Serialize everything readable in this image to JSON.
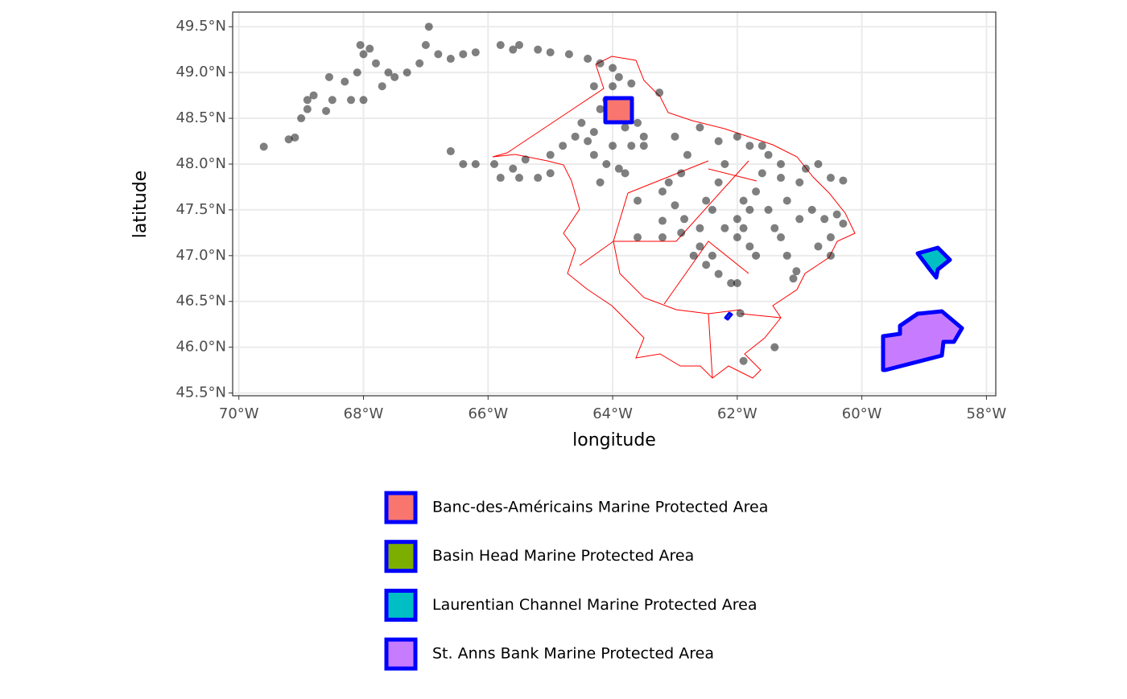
{
  "chart_data": {
    "type": "scatter",
    "xlabel": "longitude",
    "ylabel": "latitude",
    "xlim": [
      -70.1,
      -57.85
    ],
    "ylim": [
      45.47,
      49.66
    ],
    "xticks": [
      {
        "value": -70,
        "label": "70°W"
      },
      {
        "value": -68,
        "label": "68°W"
      },
      {
        "value": -66,
        "label": "66°W"
      },
      {
        "value": -64,
        "label": "64°W"
      },
      {
        "value": -62,
        "label": "62°W"
      },
      {
        "value": -60,
        "label": "60°W"
      },
      {
        "value": -58,
        "label": "58°W"
      }
    ],
    "yticks": [
      {
        "value": 45.5,
        "label": "45.5°N"
      },
      {
        "value": 46,
        "label": "46.0°N"
      },
      {
        "value": 46.5,
        "label": "46.5°N"
      },
      {
        "value": 47,
        "label": "47.0°N"
      },
      {
        "value": 47.5,
        "label": "47.5°N"
      },
      {
        "value": 48,
        "label": "48.0°N"
      },
      {
        "value": 48.5,
        "label": "48.5°N"
      },
      {
        "value": 49,
        "label": "49.0°N"
      },
      {
        "value": 49.5,
        "label": "49.5°N"
      }
    ],
    "grid": true,
    "point_color": "#000000",
    "point_alpha": 0.5,
    "x": [
      -69.6,
      -69.2,
      -69.1,
      -69.0,
      -68.9,
      -68.8,
      -68.9,
      -68.6,
      -68.5,
      -68.55,
      -68.3,
      -68.1,
      -68.0,
      -67.9,
      -68.05,
      -67.8,
      -67.6,
      -67.3,
      -67.1,
      -67.7,
      -68.0,
      -68.2,
      -67.5,
      -66.95,
      -67.0,
      -66.8,
      -66.6,
      -66.4,
      -66.2,
      -65.8,
      -65.5,
      -65.6,
      -65.2,
      -65.0,
      -64.7,
      -64.4,
      -64.2,
      -64.0,
      -63.9,
      -64.0,
      -64.3,
      -63.7,
      -64.1,
      -66.6,
      -66.2,
      -66.4,
      -65.9,
      -65.8,
      -65.5,
      -65.2,
      -65.4,
      -65.0,
      -64.8,
      -64.6,
      -64.4,
      -64.3,
      -64.5,
      -64.2,
      -64.0,
      -63.8,
      -63.6,
      -63.5,
      -63.7,
      -64.0,
      -64.1,
      -63.9,
      -64.3,
      -64.2,
      -63.8,
      -63.5,
      -63.25,
      -63.0,
      -62.8,
      -62.9,
      -63.1,
      -63.2,
      -63.0,
      -62.85,
      -62.9,
      -63.2,
      -63.2,
      -63.6,
      -62.6,
      -62.7,
      -62.4,
      -62.5,
      -62.3,
      -62.1,
      -62.0,
      -61.9,
      -61.8,
      -61.7,
      -62.2,
      -62.0,
      -61.8,
      -61.9,
      -61.7,
      -61.5,
      -61.4,
      -61.3,
      -61.6,
      -61.3,
      -61.0,
      -61.2,
      -61.0,
      -60.8,
      -60.6,
      -60.4,
      -60.3,
      -60.5,
      -60.7,
      -60.5,
      -60.9,
      -60.7,
      -60.5,
      -60.3,
      -61.1,
      -61.05,
      -61.2,
      -62.3,
      -62.6,
      -62.0,
      -61.8,
      -61.6,
      -61.5,
      -61.3,
      -62.2,
      -62.5,
      -62.3,
      -61.95,
      -61.4,
      -61.9,
      -62.0,
      -62.6,
      -62.4,
      -63.6,
      -65.0,
      -65.6
    ],
    "values": [
      48.19,
      48.27,
      48.29,
      48.5,
      48.7,
      48.75,
      48.6,
      48.58,
      48.7,
      48.95,
      48.9,
      49.0,
      49.2,
      49.26,
      49.3,
      49.1,
      49.0,
      49.0,
      49.1,
      48.85,
      48.7,
      48.7,
      48.95,
      49.5,
      49.3,
      49.2,
      49.15,
      49.2,
      49.22,
      49.3,
      49.3,
      49.25,
      49.25,
      49.22,
      49.2,
      49.15,
      49.1,
      49.05,
      48.95,
      48.85,
      48.85,
      48.88,
      48.7,
      48.14,
      48.0,
      48.0,
      48.0,
      47.85,
      47.85,
      47.85,
      48.05,
      48.1,
      48.2,
      48.3,
      48.25,
      48.35,
      48.45,
      48.6,
      48.5,
      48.4,
      48.45,
      48.3,
      48.2,
      48.2,
      48.0,
      47.95,
      48.1,
      47.8,
      47.9,
      48.2,
      48.78,
      48.3,
      48.1,
      47.9,
      47.8,
      47.7,
      47.55,
      47.4,
      47.25,
      47.38,
      47.2,
      47.2,
      47.1,
      47.0,
      47.0,
      46.9,
      46.8,
      46.7,
      47.2,
      47.3,
      47.1,
      47.0,
      47.3,
      47.4,
      47.5,
      47.6,
      47.7,
      47.5,
      47.3,
      47.2,
      47.9,
      47.85,
      47.8,
      47.6,
      47.4,
      47.5,
      47.4,
      47.45,
      47.35,
      47.2,
      47.1,
      47.0,
      47.95,
      48.0,
      47.85,
      47.82,
      46.75,
      46.83,
      47.0,
      48.25,
      48.4,
      48.3,
      48.2,
      48.2,
      48.1,
      48.0,
      48.0,
      47.6,
      47.8,
      46.37,
      46.0,
      45.85,
      46.7,
      47.3,
      47.5,
      47.6,
      47.9,
      47.95
    ],
    "areas": [
      {
        "name": "Banc-des-Américains Marine Protected Area",
        "fill": "#f8766d"
      },
      {
        "name": "Basin Head Marine Protected Area",
        "fill": "#7cae00"
      },
      {
        "name": "Laurentian Channel Marine Protected Area",
        "fill": "#00bfc4"
      },
      {
        "name": "St. Anns Bank Marine Protected Area",
        "fill": "#c77cff"
      }
    ],
    "area_stroke": "#0000ff"
  }
}
